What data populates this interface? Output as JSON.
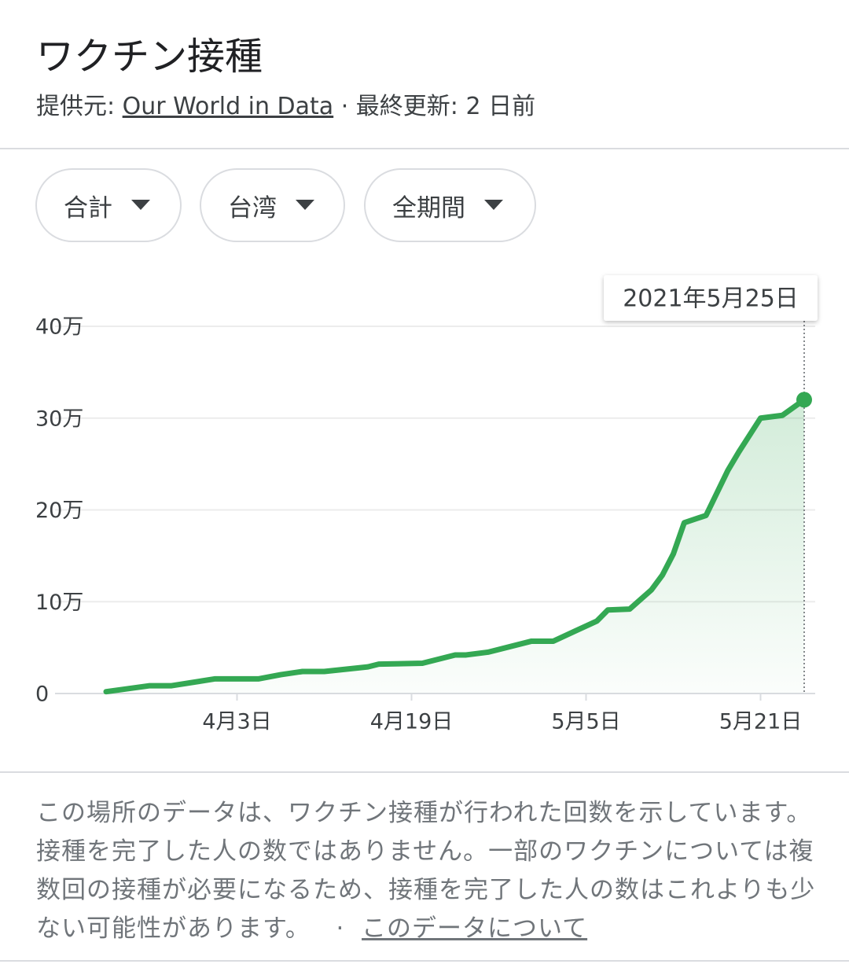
{
  "header": {
    "title": "ワクチン接種",
    "source_label": "提供元:",
    "source": "Our World in Data",
    "updated": "· 最終更新: 2 日前"
  },
  "filters": [
    "合計",
    "台湾",
    "全期間"
  ],
  "chart_data": {
    "type": "line",
    "x": [
      "2021-03-22",
      "2021-03-26",
      "2021-03-28",
      "2021-04-01",
      "2021-04-05",
      "2021-04-07",
      "2021-04-09",
      "2021-04-11",
      "2021-04-15",
      "2021-04-16",
      "2021-04-20",
      "2021-04-23",
      "2021-04-24",
      "2021-04-26",
      "2021-04-30",
      "2021-05-02",
      "2021-05-04",
      "2021-05-06",
      "2021-05-07",
      "2021-05-09",
      "2021-05-11",
      "2021-05-12",
      "2021-05-13",
      "2021-05-14",
      "2021-05-16",
      "2021-05-18",
      "2021-05-19",
      "2021-05-21",
      "2021-05-23",
      "2021-05-25"
    ],
    "values": [
      2000,
      8500,
      8500,
      16000,
      16000,
      20500,
      24000,
      24000,
      29000,
      32000,
      33000,
      42000,
      42000,
      45000,
      57000,
      57000,
      68000,
      79000,
      91000,
      92000,
      113000,
      129000,
      152000,
      186000,
      194000,
      243000,
      263000,
      300000,
      303000,
      320000
    ],
    "color": "#34a853",
    "xlim": [
      "2021-03-22",
      "2021-05-25"
    ],
    "xticks": [
      {
        "value": "2021-04-03",
        "label": "4月3日"
      },
      {
        "value": "2021-04-19",
        "label": "4月19日"
      },
      {
        "value": "2021-05-05",
        "label": "5月5日"
      },
      {
        "value": "2021-05-21",
        "label": "5月21日"
      }
    ],
    "ylim": [
      0,
      400000
    ],
    "yticks": [
      0,
      {
        "value": 100000,
        "label": "10万"
      },
      {
        "value": 200000,
        "label": "20万"
      },
      {
        "value": 300000,
        "label": "30万"
      },
      {
        "value": 400000,
        "label": "40万"
      }
    ],
    "grid": true,
    "tooltip": "2021年5月25日"
  },
  "note": {
    "text": "この場所のデータは、ワクチン接種が行われた回数を示しています。接種を完了した人の数ではありません。一部のワクチンについては複数回の接種が必要になるため、接種を完了した人の数はこれよりも少ない可能性があります。",
    "separator": "·",
    "link": "このデータについて"
  }
}
